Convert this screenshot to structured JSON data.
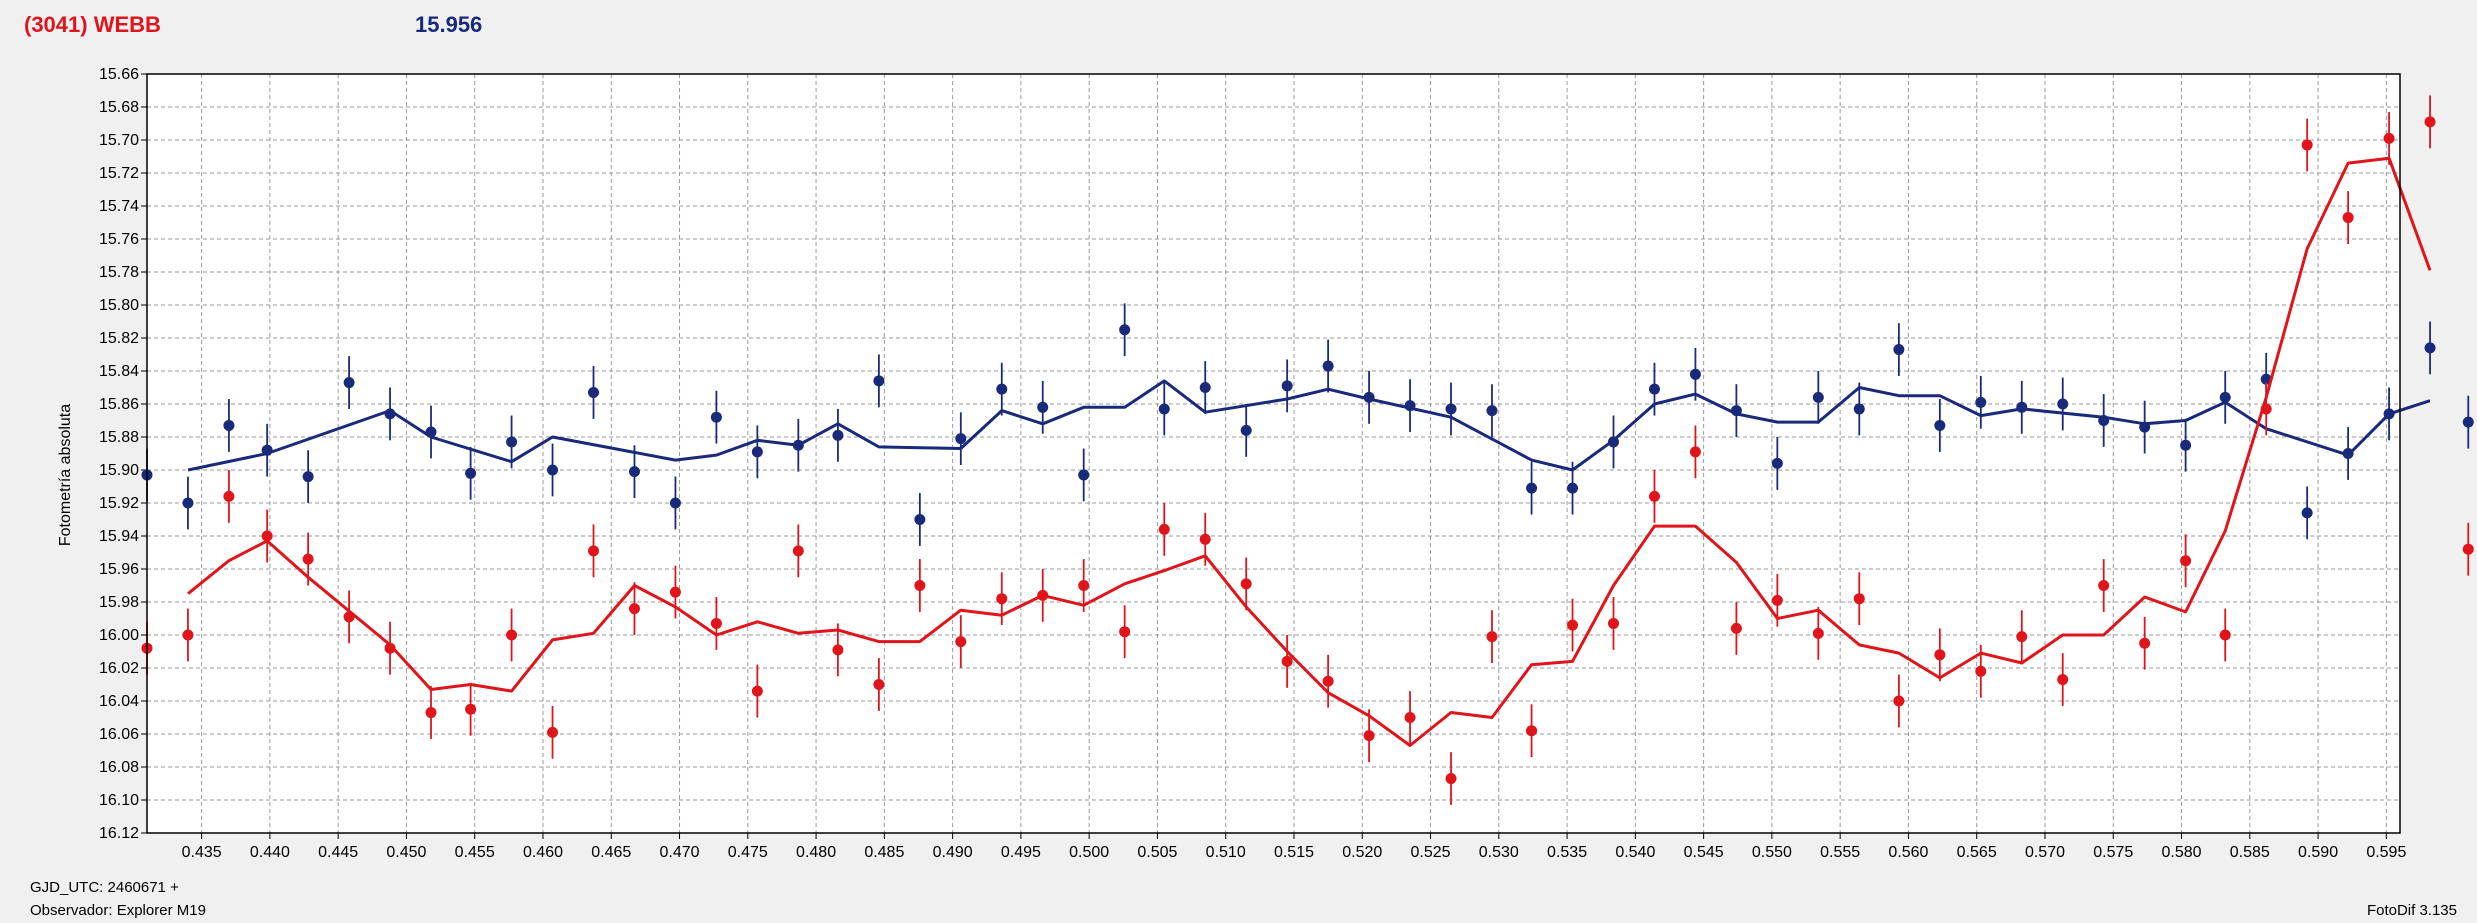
{
  "header": {
    "name": "(3041) WEBB",
    "name_color": "#e0151b",
    "magnitude": "15.956",
    "magnitude_color": "#1a2a7a"
  },
  "footer": {
    "gjd": "GJD_UTC: 2460671 +",
    "observer": "Observador: Explorer M19",
    "version": "FotoDif 3.135"
  },
  "chart_data": {
    "type": "scatter",
    "title": "",
    "xlabel": "",
    "ylabel": "Fotometría absoluta",
    "xlim": [
      0.431,
      0.596
    ],
    "ylim": [
      15.66,
      16.12
    ],
    "y_inverted": true,
    "grid": true,
    "x_ticks": [
      "0.435",
      "0.440",
      "0.445",
      "0.450",
      "0.455",
      "0.460",
      "0.465",
      "0.470",
      "0.475",
      "0.480",
      "0.485",
      "0.490",
      "0.495",
      "0.500",
      "0.505",
      "0.510",
      "0.515",
      "0.520",
      "0.525",
      "0.530",
      "0.535",
      "0.540",
      "0.545",
      "0.550",
      "0.555",
      "0.560",
      "0.565",
      "0.570",
      "0.575",
      "0.580",
      "0.585",
      "0.590",
      "0.595"
    ],
    "y_ticks": [
      "15.66",
      "15.68",
      "15.70",
      "15.72",
      "15.74",
      "15.76",
      "15.78",
      "15.80",
      "15.82",
      "15.84",
      "15.86",
      "15.88",
      "15.90",
      "15.92",
      "15.94",
      "15.96",
      "15.98",
      "16.00",
      "16.02",
      "16.04",
      "16.06",
      "16.08",
      "16.10",
      "16.12"
    ],
    "series": [
      {
        "color": "#1a2a7a",
        "error": 0.016,
        "points": [
          [
            0.431,
            15.903
          ],
          [
            0.434,
            15.92
          ],
          [
            0.437,
            15.873
          ],
          [
            0.4398,
            15.888
          ],
          [
            0.4428,
            15.904
          ],
          [
            0.4458,
            15.847
          ],
          [
            0.4488,
            15.866
          ],
          [
            0.4518,
            15.877
          ],
          [
            0.4547,
            15.902
          ],
          [
            0.4577,
            15.883
          ],
          [
            0.4607,
            15.9
          ],
          [
            0.4637,
            15.853
          ],
          [
            0.4667,
            15.901
          ],
          [
            0.4697,
            15.92
          ],
          [
            0.4727,
            15.868
          ],
          [
            0.4757,
            15.889
          ],
          [
            0.4787,
            15.885
          ],
          [
            0.4816,
            15.879
          ],
          [
            0.4846,
            15.846
          ],
          [
            0.4876,
            15.93
          ],
          [
            0.4906,
            15.881
          ],
          [
            0.4936,
            15.851
          ],
          [
            0.4966,
            15.862
          ],
          [
            0.4996,
            15.903
          ],
          [
            0.5026,
            15.815
          ],
          [
            0.5055,
            15.863
          ],
          [
            0.5085,
            15.85
          ],
          [
            0.5115,
            15.876
          ],
          [
            0.5145,
            15.849
          ],
          [
            0.5175,
            15.837
          ],
          [
            0.5205,
            15.856
          ],
          [
            0.5235,
            15.861
          ],
          [
            0.5265,
            15.863
          ],
          [
            0.5295,
            15.864
          ],
          [
            0.5324,
            15.911
          ],
          [
            0.5354,
            15.911
          ],
          [
            0.5384,
            15.883
          ],
          [
            0.5414,
            15.851
          ],
          [
            0.5444,
            15.842
          ],
          [
            0.5474,
            15.864
          ],
          [
            0.5504,
            15.896
          ],
          [
            0.5534,
            15.856
          ],
          [
            0.5564,
            15.863
          ],
          [
            0.5593,
            15.827
          ],
          [
            0.5623,
            15.873
          ],
          [
            0.5653,
            15.859
          ],
          [
            0.5683,
            15.862
          ],
          [
            0.5713,
            15.86
          ],
          [
            0.5743,
            15.87
          ],
          [
            0.5773,
            15.874
          ],
          [
            0.5803,
            15.885
          ],
          [
            0.5832,
            15.856
          ],
          [
            0.5862,
            15.845
          ],
          [
            0.5892,
            15.926
          ],
          [
            0.5922,
            15.89
          ],
          [
            0.5952,
            15.866
          ],
          [
            0.5982,
            15.826
          ],
          [
            0.601,
            15.871
          ]
        ],
        "trend": [
          [
            0.434,
            15.9
          ],
          [
            0.4398,
            15.89
          ],
          [
            0.4488,
            15.864
          ],
          [
            0.4518,
            15.88
          ],
          [
            0.4577,
            15.895
          ],
          [
            0.4607,
            15.88
          ],
          [
            0.4697,
            15.894
          ],
          [
            0.4727,
            15.891
          ],
          [
            0.4757,
            15.882
          ],
          [
            0.4787,
            15.885
          ],
          [
            0.4816,
            15.872
          ],
          [
            0.4846,
            15.886
          ],
          [
            0.4906,
            15.887
          ],
          [
            0.4936,
            15.864
          ],
          [
            0.4966,
            15.872
          ],
          [
            0.4996,
            15.862
          ],
          [
            0.5026,
            15.862
          ],
          [
            0.5055,
            15.846
          ],
          [
            0.5085,
            15.865
          ],
          [
            0.5145,
            15.857
          ],
          [
            0.5175,
            15.851
          ],
          [
            0.5205,
            15.857
          ],
          [
            0.5265,
            15.868
          ],
          [
            0.5324,
            15.894
          ],
          [
            0.5354,
            15.9
          ],
          [
            0.5384,
            15.882
          ],
          [
            0.5414,
            15.86
          ],
          [
            0.5444,
            15.854
          ],
          [
            0.5474,
            15.866
          ],
          [
            0.5504,
            15.871
          ],
          [
            0.5534,
            15.871
          ],
          [
            0.5564,
            15.85
          ],
          [
            0.5593,
            15.855
          ],
          [
            0.5623,
            15.855
          ],
          [
            0.5653,
            15.867
          ],
          [
            0.5683,
            15.863
          ],
          [
            0.5743,
            15.868
          ],
          [
            0.5773,
            15.872
          ],
          [
            0.5803,
            15.87
          ],
          [
            0.5832,
            15.859
          ],
          [
            0.5862,
            15.875
          ],
          [
            0.5922,
            15.891
          ],
          [
            0.5952,
            15.866
          ],
          [
            0.5982,
            15.858
          ]
        ]
      },
      {
        "color": "#e0151b",
        "error": 0.016,
        "points": [
          [
            0.431,
            16.008
          ],
          [
            0.434,
            16.0
          ],
          [
            0.437,
            15.916
          ],
          [
            0.4398,
            15.94
          ],
          [
            0.4428,
            15.954
          ],
          [
            0.4458,
            15.989
          ],
          [
            0.4488,
            16.008
          ],
          [
            0.4518,
            16.047
          ],
          [
            0.4547,
            16.045
          ],
          [
            0.4577,
            16.0
          ],
          [
            0.4607,
            16.059
          ],
          [
            0.4637,
            15.949
          ],
          [
            0.4667,
            15.984
          ],
          [
            0.4697,
            15.974
          ],
          [
            0.4727,
            15.993
          ],
          [
            0.4757,
            16.034
          ],
          [
            0.4787,
            15.949
          ],
          [
            0.4816,
            16.009
          ],
          [
            0.4846,
            16.03
          ],
          [
            0.4876,
            15.97
          ],
          [
            0.4906,
            16.004
          ],
          [
            0.4936,
            15.978
          ],
          [
            0.4966,
            15.976
          ],
          [
            0.4996,
            15.97
          ],
          [
            0.5026,
            15.998
          ],
          [
            0.5055,
            15.936
          ],
          [
            0.5085,
            15.942
          ],
          [
            0.5115,
            15.969
          ],
          [
            0.5145,
            16.016
          ],
          [
            0.5175,
            16.028
          ],
          [
            0.5205,
            16.061
          ],
          [
            0.5235,
            16.05
          ],
          [
            0.5265,
            16.087
          ],
          [
            0.5295,
            16.001
          ],
          [
            0.5324,
            16.058
          ],
          [
            0.5354,
            15.994
          ],
          [
            0.5384,
            15.993
          ],
          [
            0.5414,
            15.916
          ],
          [
            0.5444,
            15.889
          ],
          [
            0.5474,
            15.996
          ],
          [
            0.5504,
            15.979
          ],
          [
            0.5534,
            15.999
          ],
          [
            0.5564,
            15.978
          ],
          [
            0.5593,
            16.04
          ],
          [
            0.5623,
            16.012
          ],
          [
            0.5653,
            16.022
          ],
          [
            0.5683,
            16.001
          ],
          [
            0.5713,
            16.027
          ],
          [
            0.5743,
            15.97
          ],
          [
            0.5773,
            16.005
          ],
          [
            0.5803,
            15.955
          ],
          [
            0.5832,
            16.0
          ],
          [
            0.5862,
            15.863
          ],
          [
            0.5892,
            15.703
          ],
          [
            0.5922,
            15.747
          ],
          [
            0.5952,
            15.699
          ],
          [
            0.5982,
            15.689
          ],
          [
            0.601,
            15.948
          ]
        ],
        "trend": [
          [
            0.434,
            15.975
          ],
          [
            0.437,
            15.955
          ],
          [
            0.4398,
            15.943
          ],
          [
            0.4428,
            15.965
          ],
          [
            0.4488,
            16.006
          ],
          [
            0.4518,
            16.033
          ],
          [
            0.4547,
            16.03
          ],
          [
            0.4577,
            16.034
          ],
          [
            0.4607,
            16.003
          ],
          [
            0.4637,
            15.999
          ],
          [
            0.4667,
            15.97
          ],
          [
            0.4697,
            15.983
          ],
          [
            0.4727,
            16.0
          ],
          [
            0.4757,
            15.992
          ],
          [
            0.4787,
            15.999
          ],
          [
            0.4816,
            15.997
          ],
          [
            0.4846,
            16.004
          ],
          [
            0.4876,
            16.004
          ],
          [
            0.4906,
            15.985
          ],
          [
            0.4936,
            15.988
          ],
          [
            0.4966,
            15.976
          ],
          [
            0.4996,
            15.982
          ],
          [
            0.5026,
            15.969
          ],
          [
            0.5055,
            15.961
          ],
          [
            0.5085,
            15.952
          ],
          [
            0.5115,
            15.983
          ],
          [
            0.5145,
            16.01
          ],
          [
            0.5175,
            16.035
          ],
          [
            0.5205,
            16.049
          ],
          [
            0.5235,
            16.067
          ],
          [
            0.5265,
            16.047
          ],
          [
            0.5295,
            16.05
          ],
          [
            0.5324,
            16.018
          ],
          [
            0.5354,
            16.016
          ],
          [
            0.5384,
            15.97
          ],
          [
            0.5414,
            15.934
          ],
          [
            0.5444,
            15.934
          ],
          [
            0.5474,
            15.956
          ],
          [
            0.5504,
            15.99
          ],
          [
            0.5534,
            15.985
          ],
          [
            0.5564,
            16.006
          ],
          [
            0.5593,
            16.011
          ],
          [
            0.5623,
            16.026
          ],
          [
            0.5653,
            16.011
          ],
          [
            0.5683,
            16.017
          ],
          [
            0.5713,
            16.0
          ],
          [
            0.5743,
            16.0
          ],
          [
            0.5773,
            15.977
          ],
          [
            0.5803,
            15.986
          ],
          [
            0.5832,
            15.937
          ],
          [
            0.5862,
            15.856
          ],
          [
            0.5892,
            15.766
          ],
          [
            0.5922,
            15.714
          ],
          [
            0.5952,
            15.711
          ],
          [
            0.5982,
            15.779
          ]
        ]
      }
    ]
  }
}
